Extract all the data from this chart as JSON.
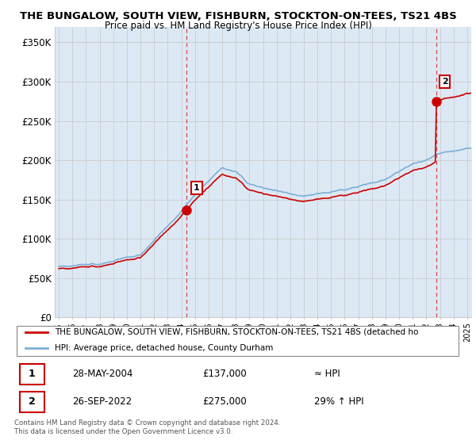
{
  "title_line1": "THE BUNGALOW, SOUTH VIEW, FISHBURN, STOCKTON-ON-TEES, TS21 4BS",
  "title_line2": "Price paid vs. HM Land Registry's House Price Index (HPI)",
  "ylabel_ticks": [
    "£0",
    "£50K",
    "£100K",
    "£150K",
    "£200K",
    "£250K",
    "£300K",
    "£350K"
  ],
  "ytick_values": [
    0,
    50000,
    100000,
    150000,
    200000,
    250000,
    300000,
    350000
  ],
  "ylim": [
    0,
    370000
  ],
  "xlim_start": 1994.7,
  "xlim_end": 2025.3,
  "hpi_color": "#7bafd4",
  "hpi_fill_color": "#dce9f5",
  "price_color": "#cc0000",
  "sale1_x": 2004.4,
  "sale1_y": 137000,
  "sale2_x": 2022.73,
  "sale2_y": 275000,
  "legend_label1": "THE BUNGALOW, SOUTH VIEW, FISHBURN, STOCKTON-ON-TEES, TS21 4BS (detached ho",
  "legend_label2": "HPI: Average price, detached house, County Durham",
  "table_row1": [
    "1",
    "28-MAY-2004",
    "£137,000",
    "≈ HPI"
  ],
  "table_row2": [
    "2",
    "26-SEP-2022",
    "£275,000",
    "29% ↑ HPI"
  ],
  "footer_text": "Contains HM Land Registry data © Crown copyright and database right 2024.\nThis data is licensed under the Open Government Licence v3.0.",
  "vline_color": "#dd4444",
  "background_color": "#ffffff",
  "grid_color": "#cccccc",
  "chart_bg_color": "#dce9f5"
}
